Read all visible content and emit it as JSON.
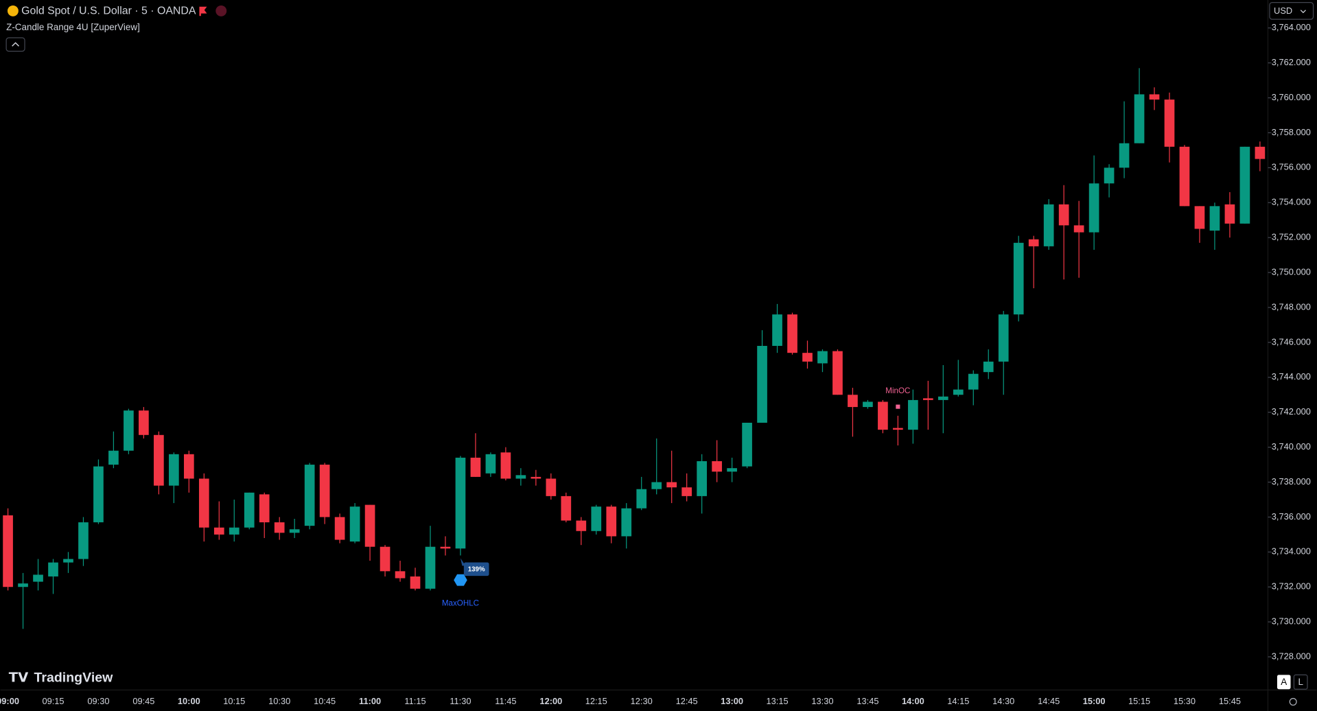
{
  "header": {
    "symbol": "Gold Spot / U.S. Dollar · 5 · OANDA",
    "indicator": "Z-Candle Range 4U [ZuperView]",
    "currency": "USD",
    "brand": "TradingView",
    "auto_button": "A",
    "log_button": "L"
  },
  "chart_data": {
    "type": "candlestick",
    "up_color": "#089981",
    "down_color": "#f23645",
    "categories": [
      "09:00",
      null,
      null,
      "09:15",
      null,
      null,
      "09:30",
      null,
      null,
      "09:45",
      null,
      null,
      "10:00",
      null,
      null,
      "10:15",
      null,
      null,
      "10:30",
      null,
      null,
      "10:45",
      null,
      null,
      "11:00",
      null,
      null,
      "11:15",
      null,
      null,
      "11:30",
      null,
      null,
      "11:45",
      null,
      null,
      "12:00",
      null,
      null,
      "12:15",
      null,
      null,
      "12:30",
      null,
      null,
      "12:45",
      null,
      null,
      "13:00",
      null,
      null,
      "13:15",
      null,
      null,
      "13:30",
      null,
      null,
      "13:45",
      null,
      null,
      "14:00",
      null,
      null,
      "14:15",
      null,
      null,
      "14:30",
      null,
      null,
      "14:45",
      null,
      null,
      "15:00",
      null,
      null,
      "15:15",
      null,
      null,
      "15:30",
      null,
      null,
      "15:45",
      null,
      null
    ],
    "open": [
      3736.1,
      3732.0,
      3732.3,
      3732.6,
      3733.4,
      3733.6,
      3735.7,
      3739.0,
      3739.8,
      3742.1,
      3740.7,
      3737.8,
      3739.6,
      3738.2,
      3735.4,
      3735.0,
      3735.4,
      3737.3,
      3735.7,
      3735.1,
      3735.5,
      3739.0,
      3736.0,
      3734.6,
      3736.7,
      3734.3,
      3732.9,
      3732.6,
      3731.9,
      3734.3,
      3734.2,
      3739.4,
      3738.5,
      3739.7,
      3738.2,
      3738.3,
      3738.2,
      3737.2,
      3735.8,
      3735.2,
      3736.6,
      3734.9,
      3736.5,
      3737.6,
      3738.0,
      3737.7,
      3737.2,
      3739.2,
      3738.6,
      3738.9,
      3741.4,
      3745.8,
      3747.6,
      3745.4,
      3744.8,
      3745.5,
      3743.0,
      3742.3,
      3742.6,
      3741.1,
      3741.0,
      3742.8,
      3742.7,
      3743.0,
      3743.3,
      3744.3,
      3744.9,
      3747.6,
      3751.9,
      3751.5,
      3753.9,
      3752.7,
      3752.3,
      3755.1,
      3756.0,
      3757.4,
      3760.2,
      3759.9,
      3757.2,
      3753.8,
      3752.4,
      3753.9,
      3752.8,
      3757.2
    ],
    "high": [
      3736.5,
      3732.8,
      3733.6,
      3733.6,
      3734.0,
      3736.0,
      3739.3,
      3740.9,
      3742.2,
      3742.3,
      3740.9,
      3739.7,
      3739.8,
      3738.5,
      3736.9,
      3737.0,
      3737.4,
      3737.4,
      3736.0,
      3735.9,
      3739.1,
      3739.1,
      3736.2,
      3736.8,
      3736.7,
      3734.4,
      3733.5,
      3733.1,
      3735.5,
      3734.9,
      3739.5,
      3740.8,
      3739.7,
      3740.0,
      3738.8,
      3738.7,
      3738.5,
      3737.4,
      3736.0,
      3736.7,
      3736.7,
      3736.8,
      3738.3,
      3740.5,
      3739.8,
      3738.5,
      3739.6,
      3740.4,
      3739.4,
      3741.4,
      3746.7,
      3748.2,
      3747.7,
      3746.1,
      3745.6,
      3745.6,
      3743.4,
      3742.7,
      3742.7,
      3741.8,
      3743.3,
      3743.8,
      3744.7,
      3745.0,
      3744.4,
      3745.6,
      3747.8,
      3752.1,
      3752.1,
      3754.2,
      3755.0,
      3754.1,
      3756.7,
      3756.2,
      3759.8,
      3761.7,
      3760.6,
      3760.3,
      3757.3,
      3753.8,
      3754.0,
      3754.6,
      3757.2,
      3757.5
    ],
    "low": [
      3731.8,
      3729.6,
      3731.8,
      3731.6,
      3732.8,
      3733.2,
      3735.6,
      3738.8,
      3739.6,
      3740.5,
      3737.3,
      3736.8,
      3737.4,
      3734.6,
      3734.7,
      3734.6,
      3735.3,
      3734.8,
      3734.7,
      3734.8,
      3735.3,
      3735.6,
      3734.5,
      3734.5,
      3733.5,
      3732.6,
      3732.3,
      3731.8,
      3731.8,
      3733.8,
      3733.8,
      3738.3,
      3738.3,
      3738.1,
      3737.8,
      3737.8,
      3737.0,
      3735.7,
      3734.4,
      3735.0,
      3734.5,
      3734.2,
      3736.4,
      3737.3,
      3736.8,
      3736.9,
      3736.2,
      3738.0,
      3738.0,
      3738.8,
      3741.4,
      3745.4,
      3745.3,
      3744.5,
      3744.3,
      3743.0,
      3740.6,
      3742.2,
      3740.8,
      3740.1,
      3740.2,
      3741.0,
      3740.8,
      3742.9,
      3742.4,
      3743.9,
      3743.0,
      3747.2,
      3749.1,
      3751.3,
      3749.6,
      3749.7,
      3751.3,
      3754.3,
      3755.4,
      3757.4,
      3759.3,
      3756.3,
      3753.8,
      3751.7,
      3751.3,
      3752.0,
      3752.8,
      3755.8
    ],
    "close": [
      3732.0,
      3732.2,
      3732.7,
      3733.4,
      3733.6,
      3735.7,
      3738.9,
      3739.8,
      3742.1,
      3740.7,
      3737.8,
      3739.6,
      3738.2,
      3735.4,
      3735.0,
      3735.4,
      3737.4,
      3735.7,
      3735.1,
      3735.3,
      3739.0,
      3736.0,
      3734.7,
      3736.6,
      3734.3,
      3732.9,
      3732.5,
      3731.9,
      3734.3,
      3734.2,
      3739.4,
      3738.3,
      3739.6,
      3738.2,
      3738.4,
      3738.2,
      3737.2,
      3735.8,
      3735.2,
      3736.6,
      3734.9,
      3736.5,
      3737.6,
      3738.0,
      3737.7,
      3737.2,
      3739.2,
      3738.6,
      3738.8,
      3741.4,
      3745.8,
      3747.6,
      3745.4,
      3744.9,
      3745.5,
      3743.0,
      3742.3,
      3742.6,
      3741.0,
      3741.0,
      3742.7,
      3742.7,
      3742.9,
      3743.3,
      3744.2,
      3744.9,
      3747.6,
      3751.7,
      3751.5,
      3753.9,
      3752.7,
      3752.3,
      3755.1,
      3756.0,
      3757.4,
      3760.2,
      3759.9,
      3757.2,
      3753.8,
      3752.5,
      3753.8,
      3752.8,
      3757.2,
      3756.5
    ],
    "ylim": [
      3726.1,
      3765.6
    ],
    "yticks": [
      {
        "value": 3728,
        "label": "3,728.000"
      },
      {
        "value": 3730,
        "label": "3,730.000"
      },
      {
        "value": 3732,
        "label": "3,732.000"
      },
      {
        "value": 3734,
        "label": "3,734.000"
      },
      {
        "value": 3736,
        "label": "3,736.000"
      },
      {
        "value": 3738,
        "label": "3,738.000"
      },
      {
        "value": 3740,
        "label": "3,740.000"
      },
      {
        "value": 3742,
        "label": "3,742.000"
      },
      {
        "value": 3744,
        "label": "3,744.000"
      },
      {
        "value": 3746,
        "label": "3,746.000"
      },
      {
        "value": 3748,
        "label": "3,748.000"
      },
      {
        "value": 3750,
        "label": "3,750.000"
      },
      {
        "value": 3752,
        "label": "3,752.000"
      },
      {
        "value": 3754,
        "label": "3,754.000"
      },
      {
        "value": 3756,
        "label": "3,756.000"
      },
      {
        "value": 3758,
        "label": "3,758.000"
      },
      {
        "value": 3760,
        "label": "3,760.000"
      },
      {
        "value": 3762,
        "label": "3,762.000"
      },
      {
        "value": 3764,
        "label": "3,764.000"
      }
    ],
    "annotations": [
      {
        "text": "MaxOHLC",
        "color": "#2962ff"
      },
      {
        "text": "139%",
        "color": "#1e4f8c"
      },
      {
        "text": "MinOC",
        "color": "#f06292"
      }
    ]
  }
}
